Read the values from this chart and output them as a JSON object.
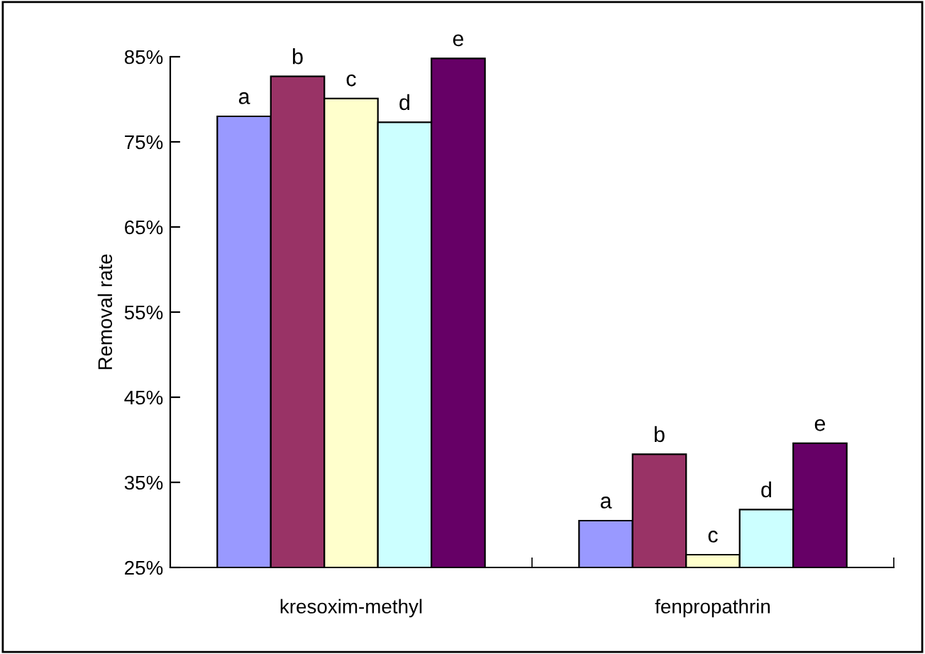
{
  "chart_data": {
    "type": "bar",
    "ylabel": "Removal rate",
    "categories": [
      "kresoxim-methyl",
      "fenpropathrin"
    ],
    "series": [
      {
        "color": "#9999ff",
        "values": [
          78.0,
          30.5
        ],
        "value_labels": [
          "a",
          "a"
        ]
      },
      {
        "color": "#993366",
        "values": [
          82.7,
          38.3
        ],
        "value_labels": [
          "b",
          "b"
        ]
      },
      {
        "color": "#ffffcc",
        "values": [
          80.1,
          26.5
        ],
        "value_labels": [
          "c",
          "c"
        ]
      },
      {
        "color": "#ccffff",
        "values": [
          77.3,
          31.8
        ],
        "value_labels": [
          "d",
          "d"
        ]
      },
      {
        "color": "#660066",
        "values": [
          84.8,
          39.6
        ],
        "value_labels": [
          "e",
          "e"
        ]
      }
    ],
    "ylim": [
      25,
      85
    ],
    "yticks": [
      {
        "value": 25,
        "label": "25%"
      },
      {
        "value": 35,
        "label": "35%"
      },
      {
        "value": 45,
        "label": "45%"
      },
      {
        "value": 55,
        "label": "55%"
      },
      {
        "value": 65,
        "label": "65%"
      },
      {
        "value": 75,
        "label": "75%"
      },
      {
        "value": 85,
        "label": "85%"
      }
    ],
    "grid": false
  }
}
